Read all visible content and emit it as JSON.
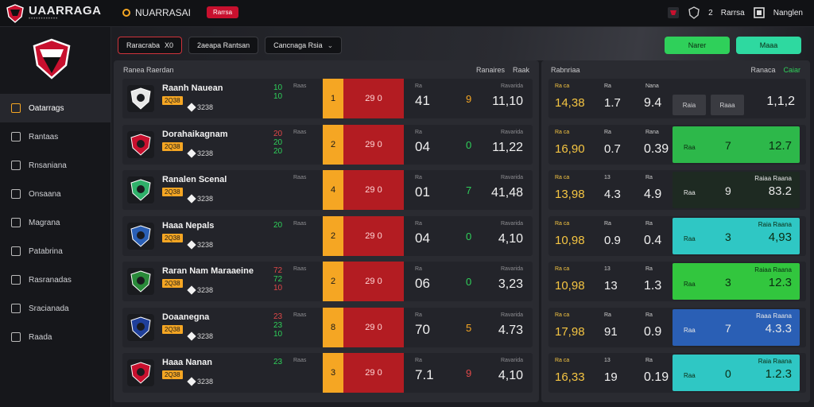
{
  "brand": {
    "name": "UAARRAGA",
    "sub": "••••••••••••"
  },
  "topnav": {
    "title": "NUARRASAI",
    "badge": "Rarrsa"
  },
  "topright": {
    "count": "2",
    "label1": "Rarrsa",
    "label2": "Nanglen"
  },
  "sidebar": {
    "items": [
      {
        "label": "Oatarrags",
        "icon": "trophy-icon"
      },
      {
        "label": "Rantaas",
        "icon": "document-icon"
      },
      {
        "label": "Rnsaniana",
        "icon": "person-icon"
      },
      {
        "label": "Onsaana",
        "icon": "calendar-icon"
      },
      {
        "label": "Magrana",
        "icon": "search-icon"
      },
      {
        "label": "Patabrina",
        "icon": "tools-icon"
      },
      {
        "label": "Rasranadas",
        "icon": "chart-icon"
      },
      {
        "label": "Sracianada",
        "icon": "inbox-icon"
      },
      {
        "label": "Raada",
        "icon": "clock-icon"
      }
    ]
  },
  "filters": [
    {
      "label": "Raracraba",
      "extra": "X0"
    },
    {
      "label": "2aeapa Rantsan",
      "extra": ""
    },
    {
      "label": "Cancnaga Rsia",
      "extra": ""
    }
  ],
  "green_buttons": [
    "Narer",
    "Maaa"
  ],
  "main": {
    "header_left": "Ranea Raerdan",
    "tabs": [
      "Ranaires",
      "Raak"
    ]
  },
  "right": {
    "header_left": "Rabnriaa",
    "tabs": [
      "Ranaca",
      "Caiar"
    ]
  },
  "rows": [
    {
      "name": "Raanh Nauean",
      "tag": "2Q38",
      "score": "3238",
      "stack": [
        "10",
        "10"
      ],
      "stack_colors": [
        "g",
        "g"
      ],
      "lbl": "Raas",
      "obar": "1",
      "rbar": "29 0",
      "mlbl": "Ra",
      "mval": "41",
      "cval": "9",
      "cval_color": "#f5a623",
      "blbl": "Ravarida",
      "bval": "11,10",
      "r": {
        "c1": "Ra ca",
        "c1v": "14,38",
        "c2": "Ra",
        "c2v": "1.7",
        "c3": "Nana",
        "c3v": "9.4",
        "card": "mini",
        "m1": "Raia",
        "m2": "Raaa",
        "ct": "",
        "cb": "1,1,2",
        "cm": "",
        "cl": ""
      }
    },
    {
      "name": "Dorahaikagnam",
      "tag": "2Q38",
      "score": "3238",
      "stack": [
        "20",
        "20",
        "20"
      ],
      "stack_colors": [
        "r",
        "g",
        "g"
      ],
      "lbl": "Raas",
      "obar": "2",
      "rbar": "29 0",
      "mlbl": "Ra",
      "mval": "04",
      "cval": "0",
      "cval_color": "#2fd05a",
      "blbl": "Ravarida",
      "bval": "11,22",
      "r": {
        "c1": "Ra ca",
        "c1v": "16,90",
        "c2": "Ra",
        "c2v": "0.7",
        "c3": "Rana",
        "c3v": "0.39",
        "card": "#2db84a",
        "m1": "",
        "m2": "",
        "ct": "",
        "cb": "12.7",
        "cm": "7",
        "cl": "Raa"
      }
    },
    {
      "name": "Ranalen Scenal",
      "tag": "2Q38",
      "score": "3238",
      "stack": [
        "",
        ""
      ],
      "stack_colors": [
        "g",
        "g"
      ],
      "lbl": "Raas",
      "obar": "4",
      "rbar": "29 0",
      "mlbl": "Ra",
      "mval": "01",
      "cval": "7",
      "cval_color": "#2fd05a",
      "blbl": "Ravarida",
      "bval": "41,48",
      "r": {
        "c1": "Ra ca",
        "c1v": "13,98",
        "c2": "13",
        "c2v": "4.3",
        "c3": "Ra",
        "c3v": "4.9",
        "card": "#1e2a22",
        "m1": "",
        "m2": "",
        "ct": "Raiaa Raana",
        "cb": "83.2",
        "cm": "9",
        "cl": "Raa"
      }
    },
    {
      "name": "Haaa Nepals",
      "tag": "2Q38",
      "score": "3238",
      "stack": [
        "20"
      ],
      "stack_colors": [
        "g"
      ],
      "lbl": "Raas",
      "obar": "2",
      "rbar": "29 0",
      "mlbl": "Ra",
      "mval": "04",
      "cval": "0",
      "cval_color": "#2fd05a",
      "blbl": "Ravarida",
      "bval": "4,10",
      "r": {
        "c1": "Ra ca",
        "c1v": "10,98",
        "c2": "Ra",
        "c2v": "0.9",
        "c3": "Ra",
        "c3v": "0.4",
        "card": "#2fc7c4",
        "m1": "",
        "m2": "",
        "ct": "Raia Raana",
        "cb": "4,93",
        "cm": "3",
        "cl": "Raa"
      }
    },
    {
      "name": "Raran Nam Maraaeine",
      "tag": "2Q38",
      "score": "3238",
      "stack": [
        "72",
        "72",
        "10"
      ],
      "stack_colors": [
        "r",
        "g",
        "r"
      ],
      "lbl": "Raas",
      "obar": "2",
      "rbar": "29 0",
      "mlbl": "Ra",
      "mval": "06",
      "cval": "0",
      "cval_color": "#2fd05a",
      "blbl": "Ravarida",
      "bval": "3,23",
      "r": {
        "c1": "Ra ca",
        "c1v": "10,98",
        "c2": "13",
        "c2v": "13",
        "c3": "Ra",
        "c3v": "1.3",
        "card": "#32c63e",
        "m1": "",
        "m2": "",
        "ct": "Raiaa Raana",
        "cb": "12.3",
        "cm": "3",
        "cl": "Raa"
      }
    },
    {
      "name": "Doaanegna",
      "tag": "2Q38",
      "score": "3238",
      "stack": [
        "23",
        "23",
        "10"
      ],
      "stack_colors": [
        "r",
        "g",
        "g"
      ],
      "lbl": "Raas",
      "obar": "8",
      "rbar": "29 0",
      "mlbl": "Ra",
      "mval": "70",
      "cval": "5",
      "cval_color": "#f5a623",
      "blbl": "Ravarida",
      "bval": "4.73",
      "r": {
        "c1": "Ra ca",
        "c1v": "17,98",
        "c2": "Ra",
        "c2v": "91",
        "c3": "Ra",
        "c3v": "0.9",
        "card": "#2a5fb5",
        "m1": "",
        "m2": "",
        "ct": "Raaa Raana",
        "cb": "4.3.3",
        "cm": "7",
        "cl": "Raa"
      }
    },
    {
      "name": "Haaa Nanan",
      "tag": "2Q38",
      "score": "3238",
      "stack": [
        "23"
      ],
      "stack_colors": [
        "g"
      ],
      "lbl": "Raas",
      "obar": "3",
      "rbar": "29 0",
      "mlbl": "Ra",
      "mval": "7.1",
      "cval": "9",
      "cval_color": "#e04848",
      "blbl": "Ravarida",
      "bval": "4,10",
      "r": {
        "c1": "Ra ca",
        "c1v": "16,33",
        "c2": "13",
        "c2v": "19",
        "c3": "Ra",
        "c3v": "0.19",
        "card": "#2fc7c4",
        "m1": "",
        "m2": "",
        "ct": "Raia Raana",
        "cb": "1.2.3",
        "cm": "0",
        "cl": "Raa"
      }
    }
  ]
}
